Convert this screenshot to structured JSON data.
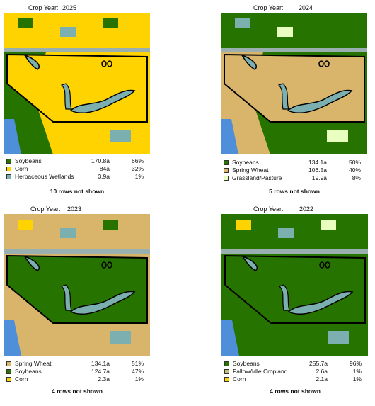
{
  "panels": [
    {
      "label": "Crop Year:",
      "year": "2025",
      "note": "10 rows not shown",
      "rows": [
        {
          "name": "Soybeans",
          "acres": "170.8a",
          "percent": "66%",
          "color": "#267300"
        },
        {
          "name": "Corn",
          "acres": "84a",
          "percent": "32%",
          "color": "#ffd300"
        },
        {
          "name": "Herbaceous Wetlands",
          "acres": "3.9a",
          "percent": "1%",
          "color": "#7cafaf"
        }
      ]
    },
    {
      "label": "Crop Year:",
      "year": "2024",
      "note": "5 rows not shown",
      "rows": [
        {
          "name": "Soybeans",
          "acres": "134.1a",
          "percent": "50%",
          "color": "#267300"
        },
        {
          "name": "Spring Wheat",
          "acres": "106.5a",
          "percent": "40%",
          "color": "#d8b56b"
        },
        {
          "name": "Grassland/Pasture",
          "acres": "19.9a",
          "percent": "8%",
          "color": "#e8ffbf"
        }
      ]
    },
    {
      "label": "Crop Year:",
      "year": "2023",
      "note": "4 rows not shown",
      "rows": [
        {
          "name": "Spring Wheat",
          "acres": "134.1a",
          "percent": "51%",
          "color": "#d8b56b"
        },
        {
          "name": "Soybeans",
          "acres": "124.7a",
          "percent": "47%",
          "color": "#267300"
        },
        {
          "name": "Corn",
          "acres": "2.3a",
          "percent": "1%",
          "color": "#ffd300"
        }
      ]
    },
    {
      "label": "Crop Year:",
      "year": "2022",
      "note": "4 rows not shown",
      "rows": [
        {
          "name": "Soybeans",
          "acres": "255.7a",
          "percent": "96%",
          "color": "#267300"
        },
        {
          "name": "Fallow/Idle Cropland",
          "acres": "2.6a",
          "percent": "1%",
          "color": "#bfbf77"
        },
        {
          "name": "Corn",
          "acres": "2.1a",
          "percent": "1%",
          "color": "#ffd300"
        }
      ]
    }
  ]
}
